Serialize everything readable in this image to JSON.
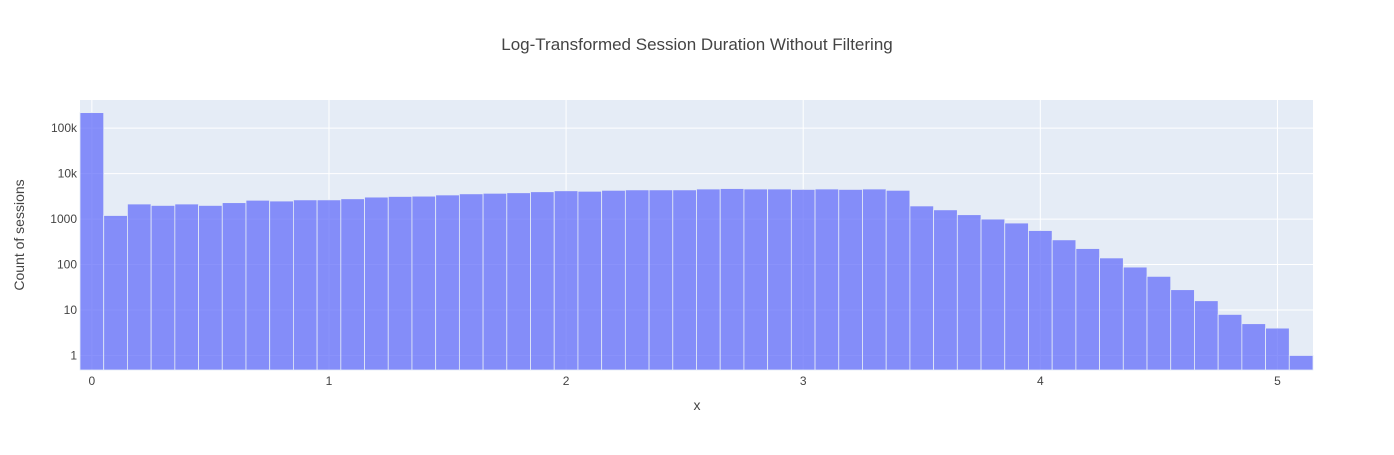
{
  "chart_data": {
    "type": "bar",
    "title": "Log-Transformed Session Duration Without Filtering",
    "xlabel": "x",
    "ylabel": "Count of sessions",
    "y_scale": "log",
    "bin_width": 0.1,
    "x": [
      0,
      0.1,
      0.2,
      0.3,
      0.4,
      0.5,
      0.6,
      0.7,
      0.8,
      0.9,
      1.0,
      1.1,
      1.2,
      1.3,
      1.4,
      1.5,
      1.6,
      1.7,
      1.8,
      1.9,
      2.0,
      2.1,
      2.2,
      2.3,
      2.4,
      2.5,
      2.6,
      2.7,
      2.8,
      2.9,
      3.0,
      3.1,
      3.2,
      3.3,
      3.4,
      3.5,
      3.6,
      3.7,
      3.8,
      3.9,
      4.0,
      4.1,
      4.2,
      4.3,
      4.4,
      4.5,
      4.6,
      4.7,
      4.8,
      4.9,
      5.0,
      5.1
    ],
    "values": [
      220000,
      1200,
      2150,
      2000,
      2150,
      2000,
      2300,
      2600,
      2500,
      2650,
      2650,
      2800,
      3050,
      3150,
      3200,
      3400,
      3600,
      3700,
      3800,
      4000,
      4200,
      4100,
      4300,
      4400,
      4400,
      4400,
      4600,
      4700,
      4600,
      4600,
      4500,
      4600,
      4500,
      4600,
      4300,
      1950,
      1600,
      1250,
      1000,
      820,
      560,
      350,
      225,
      140,
      88,
      55,
      28,
      16,
      8,
      5,
      4,
      1
    ],
    "xlim": [
      -0.05,
      5.15
    ],
    "ylim_log10": [
      -0.32,
      5.62
    ],
    "x_ticks": [
      0,
      1,
      2,
      3,
      4,
      5
    ],
    "x_tick_labels": [
      "0",
      "1",
      "2",
      "3",
      "4",
      "5"
    ],
    "y_ticks": [
      1,
      10,
      100,
      1000,
      10000,
      100000
    ],
    "y_tick_labels": [
      "1",
      "10",
      "100",
      "1000",
      "10k",
      "100k"
    ],
    "grid": true,
    "colors": {
      "bar": "#636efa",
      "plot_bg": "#e5ecf6",
      "grid": "#ffffff",
      "text": "#444444"
    }
  }
}
